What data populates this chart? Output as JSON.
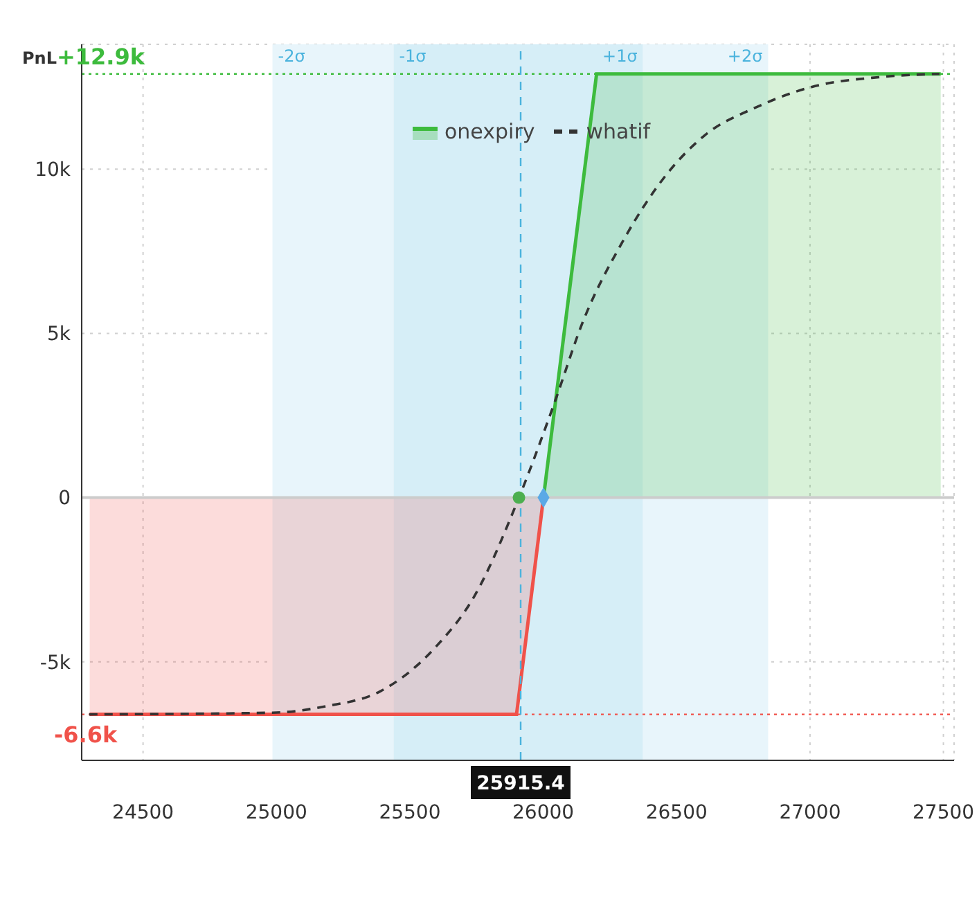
{
  "chart_data": {
    "type": "area",
    "ylabel": "PnL",
    "xlim": [
      24270,
      27540
    ],
    "xticks": [
      24500,
      25000,
      25500,
      26000,
      26500,
      27000,
      27500
    ],
    "ylim": [
      -8000,
      13800
    ],
    "yticks": [
      {
        "value": -5000,
        "label": "-5k"
      },
      0,
      {
        "value": 5000,
        "label": "5k"
      },
      {
        "value": 10000,
        "label": "10k"
      }
    ],
    "grid": true,
    "legend": "top",
    "line_style": "solid",
    "series": [
      {
        "color": "#f0524a",
        "x": [
          24300,
          25900,
          26001
        ],
        "values": [
          -6600,
          -6600,
          0
        ]
      },
      {
        "name": "onexpiry",
        "color": "#3dbb3d",
        "x": [
          26001,
          26200,
          27490
        ],
        "values": [
          0,
          12900,
          12900
        ]
      },
      {
        "type": "line",
        "name": "whatif",
        "color": "#333333",
        "line_style": "dashed",
        "x": [
          24298,
          24985,
          25187,
          25389,
          25591,
          25742,
          25909,
          26045,
          26146,
          26298,
          26449,
          26601,
          26803,
          27005,
          27258,
          27485
        ],
        "values": [
          -6600,
          -6550,
          -6350,
          -5900,
          -4600,
          -3000,
          0,
          2950,
          5300,
          7800,
          9700,
          11000,
          11900,
          12500,
          12800,
          12900
        ]
      },
      {
        "type": "scatter",
        "color": "#4caf50",
        "marker": "circle",
        "x": [
          25909
        ],
        "values": [
          0
        ]
      },
      {
        "type": "scatter",
        "color": "#5aa9e6",
        "marker": "diamond",
        "x": [
          26001
        ],
        "values": [
          0
        ]
      }
    ],
    "bands": [
      {
        "axis": "x",
        "from": 24985,
        "to": 25439,
        "label": "-2σ",
        "color": "#e8f5fb"
      },
      {
        "axis": "x",
        "from": 25439,
        "to": 25915.4,
        "label": "-1σ",
        "color": "#d6eef7"
      },
      {
        "axis": "x",
        "from": 25915.4,
        "to": 26374,
        "label": "+1σ",
        "color": "#d6eef7"
      },
      {
        "axis": "x",
        "from": 26374,
        "to": 26843,
        "label": "+2σ",
        "color": "#e8f5fb"
      }
    ],
    "ref_lines": [
      {
        "axis": "y",
        "value": 12900,
        "label": "+12.9k",
        "color": "#3dbb3d",
        "line_style": "dotted"
      },
      {
        "axis": "y",
        "value": -6600,
        "label": "-6.6k",
        "color": "#f0524a",
        "line_style": "dotted"
      },
      {
        "axis": "y",
        "value": 0,
        "color": "#cccccc",
        "line_style": "solid"
      },
      {
        "axis": "x",
        "value": 25915.4,
        "label": "25915.4",
        "color": "#4ab3dd",
        "line_style": "dashed"
      }
    ]
  }
}
